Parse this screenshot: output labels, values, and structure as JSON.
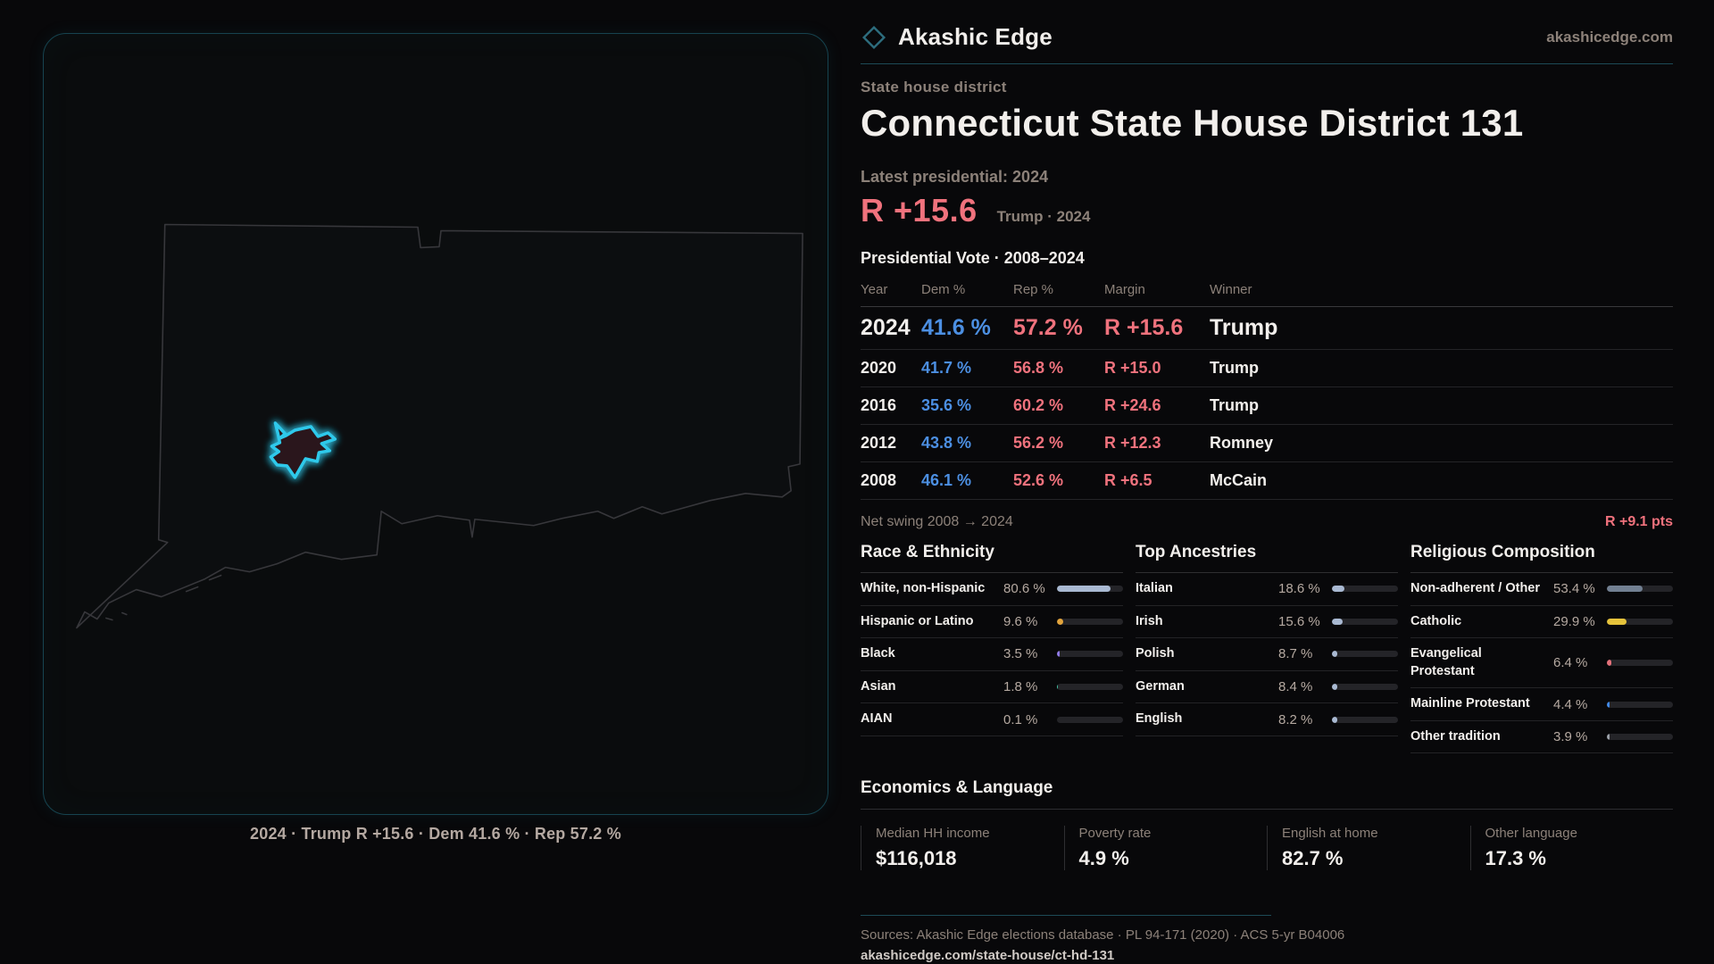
{
  "brand": {
    "name": "Akashic Edge",
    "domain": "akashicedge.com"
  },
  "page": {
    "eyebrow": "State house district",
    "title": "Connecticut State House District 131",
    "latest_label": "Latest presidential: 2024",
    "headline_margin": "R +15.6",
    "headline_sub": "Trump · 2024",
    "table_title": "Presidential Vote · 2008–2024"
  },
  "map": {
    "caption": "2024 · Trump R +15.6 · Dem 41.6 % · Rep 57.2 %"
  },
  "table": {
    "headers": [
      "Year",
      "Dem %",
      "Rep %",
      "Margin",
      "Winner"
    ],
    "rows": [
      {
        "year": "2024",
        "dem": "41.6 %",
        "rep": "57.2 %",
        "margin": "R +15.6",
        "winner": "Trump"
      },
      {
        "year": "2020",
        "dem": "41.7 %",
        "rep": "56.8 %",
        "margin": "R +15.0",
        "winner": "Trump"
      },
      {
        "year": "2016",
        "dem": "35.6 %",
        "rep": "60.2 %",
        "margin": "R +24.6",
        "winner": "Trump"
      },
      {
        "year": "2012",
        "dem": "43.8 %",
        "rep": "56.2 %",
        "margin": "R +12.3",
        "winner": "Romney"
      },
      {
        "year": "2008",
        "dem": "46.1 %",
        "rep": "52.6 %",
        "margin": "R +6.5",
        "winner": "McCain"
      }
    ]
  },
  "net_swing": {
    "label": "Net swing 2008 → 2024",
    "value": "R +9.1 pts"
  },
  "race": {
    "title": "Race & Ethnicity",
    "rows": [
      {
        "label": "White, non-Hispanic",
        "value": "80.6 %",
        "pct": 80.6,
        "color": "#a9b9d2"
      },
      {
        "label": "Hispanic or Latino",
        "value": "9.6 %",
        "pct": 9.6,
        "color": "#e2a43c"
      },
      {
        "label": "Black",
        "value": "3.5 %",
        "pct": 3.5,
        "color": "#8f7ae6"
      },
      {
        "label": "Asian",
        "value": "1.8 %",
        "pct": 1.8,
        "color": "#44c5a5"
      },
      {
        "label": "AIAN",
        "value": "0.1 %",
        "pct": 0.1,
        "color": "#a9b9d2"
      }
    ]
  },
  "ancestry": {
    "title": "Top Ancestries",
    "rows": [
      {
        "label": "Italian",
        "value": "18.6 %",
        "pct": 18.6,
        "color": "#a9b9d2"
      },
      {
        "label": "Irish",
        "value": "15.6 %",
        "pct": 15.6,
        "color": "#a9b9d2"
      },
      {
        "label": "Polish",
        "value": "8.7 %",
        "pct": 8.7,
        "color": "#a9b9d2"
      },
      {
        "label": "German",
        "value": "8.4 %",
        "pct": 8.4,
        "color": "#a9b9d2"
      },
      {
        "label": "English",
        "value": "8.2 %",
        "pct": 8.2,
        "color": "#a9b9d2"
      }
    ]
  },
  "religion": {
    "title": "Religious Composition",
    "rows": [
      {
        "label": "Non-adherent / Other",
        "value": "53.4 %",
        "pct": 53.4,
        "color": "#728092"
      },
      {
        "label": "Catholic",
        "value": "29.9 %",
        "pct": 29.9,
        "color": "#e6c33b"
      },
      {
        "label": "Evangelical Protestant",
        "value": "6.4 %",
        "pct": 6.4,
        "color": "#e4717a"
      },
      {
        "label": "Mainline Protestant",
        "value": "4.4 %",
        "pct": 4.4,
        "color": "#4189e8"
      },
      {
        "label": "Other tradition",
        "value": "3.9 %",
        "pct": 3.9,
        "color": "#9aa0a8"
      }
    ]
  },
  "economics": {
    "title": "Economics & Language",
    "stats": [
      {
        "label": "Median HH income",
        "value": "$116,018"
      },
      {
        "label": "Poverty rate",
        "value": "4.9 %"
      },
      {
        "label": "English at home",
        "value": "82.7 %"
      },
      {
        "label": "Other language",
        "value": "17.3 %"
      }
    ]
  },
  "footer": {
    "sources": "Sources: Akashic Edge elections database · PL 94-171 (2020) · ACS 5-yr B04006",
    "url": "akashicedge.com/state-house/ct-hd-131"
  },
  "colors": {
    "dem_blue": "#4c8fe2",
    "rep_red": "#f0727d",
    "accent_teal": "#2fc9eb",
    "muted_label": "#8c8179"
  }
}
